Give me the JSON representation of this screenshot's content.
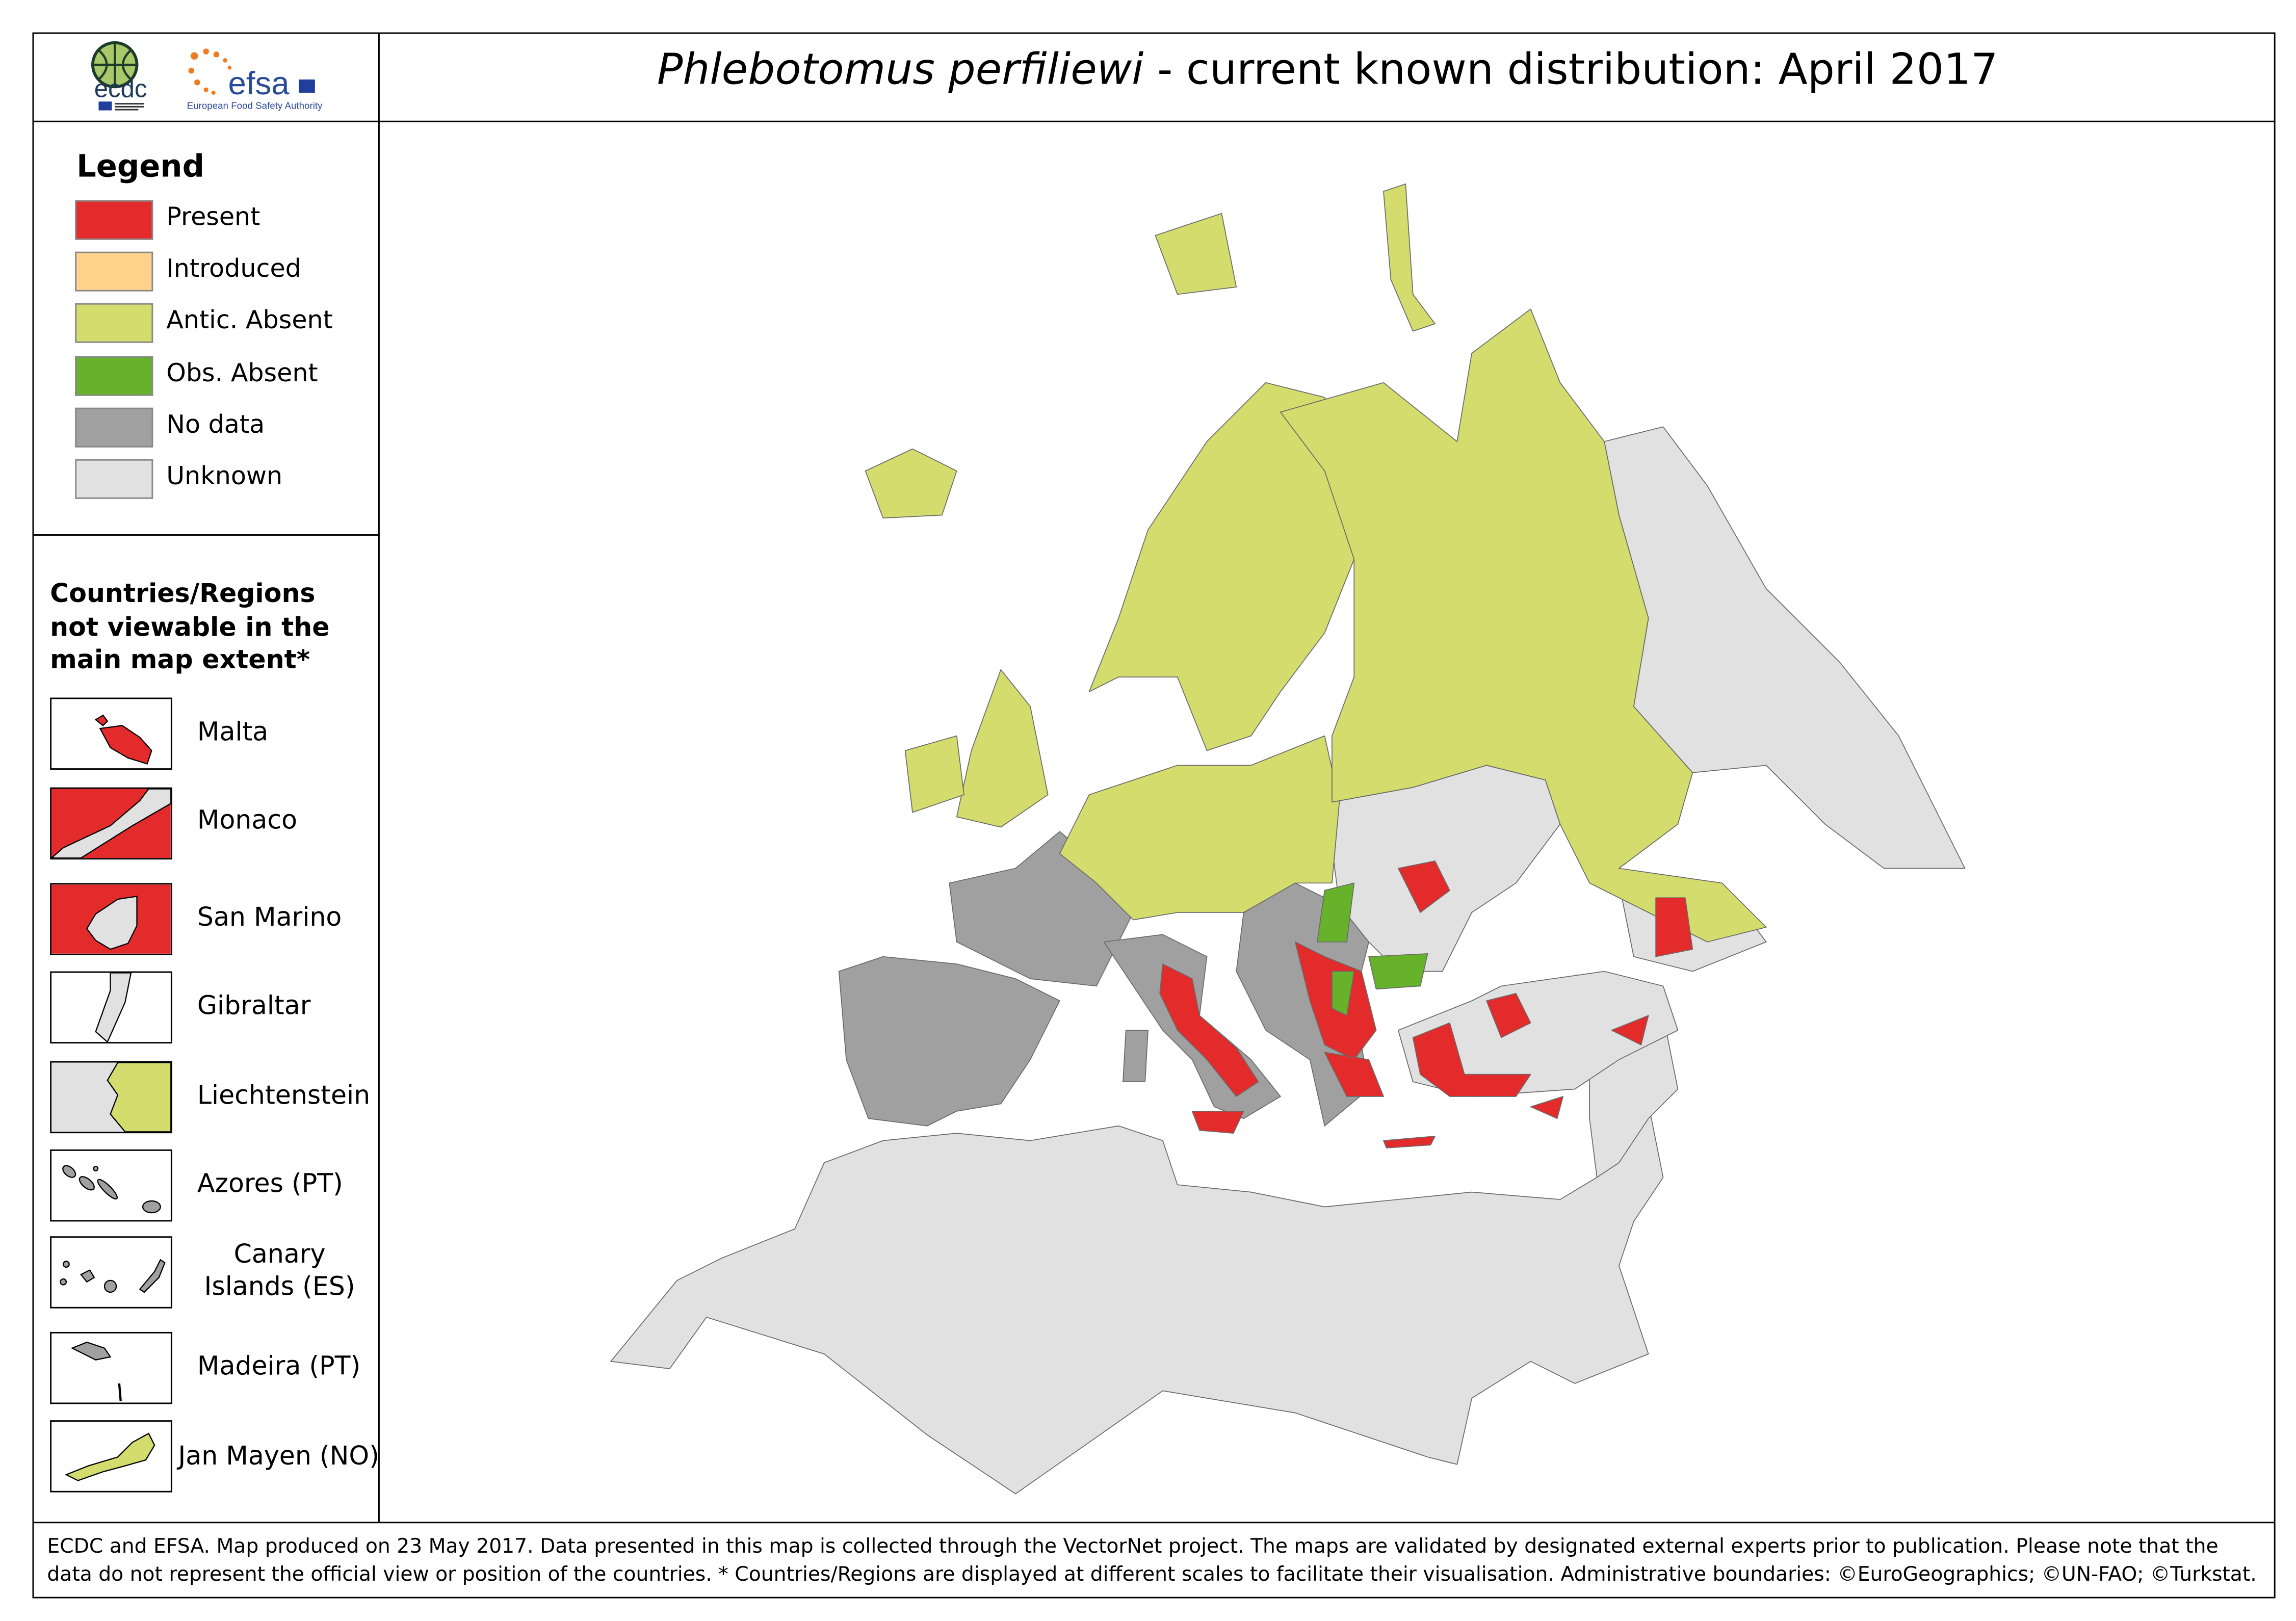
{
  "header": {
    "title_species": "Phlebotomus perfiliewi",
    "title_rest": " - current known distribution: April 2017",
    "logos": {
      "ecdc": "ecdc",
      "ecdc_sub": "EUROPEAN CENTRE FOR DISEASE PREVENTION AND CONTROL",
      "efsa": "efsa",
      "efsa_sub": "European Food Safety Authority"
    }
  },
  "legend": {
    "title": "Legend",
    "items": [
      {
        "label": "Present",
        "color": "#e32b2b"
      },
      {
        "label": "Introduced",
        "color": "#ffd38c"
      },
      {
        "label": "Antic. Absent",
        "color": "#d3dc6c"
      },
      {
        "label": "Obs. Absent",
        "color": "#66b22a"
      },
      {
        "label": "No data",
        "color": "#a0a0a0"
      },
      {
        "label": "Unknown",
        "color": "#e1e1e1"
      }
    ]
  },
  "insets": {
    "title": "Countries/Regions not viewable in the main map extent*",
    "items": [
      {
        "label": "Malta"
      },
      {
        "label": "Monaco"
      },
      {
        "label": "San Marino"
      },
      {
        "label": "Gibraltar"
      },
      {
        "label": "Liechtenstein"
      },
      {
        "label": "Azores (PT)"
      },
      {
        "label": "Canary Islands (ES)"
      },
      {
        "label": "Madeira (PT)"
      },
      {
        "label": "Jan Mayen (NO)"
      }
    ]
  },
  "footer": {
    "text": "ECDC and EFSA. Map produced on 23 May 2017. Data presented in this map is collected through the VectorNet project. The maps are validated by designated external experts prior to publication. Please note that the data do not represent the official view or position of the countries. * Countries/Regions are displayed at different scales to facilitate their visualisation. Administrative boundaries: ©EuroGeographics; ©UN-FAO; ©Turkstat."
  }
}
